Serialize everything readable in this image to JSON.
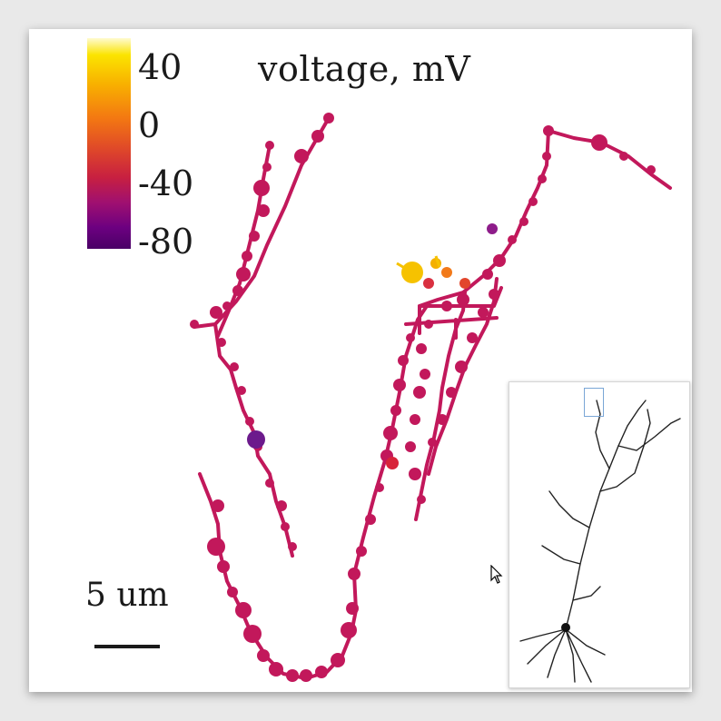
{
  "figure": {
    "title": "voltage, mV",
    "colorbar_ticks": [
      "40",
      "0",
      "-40",
      "-80"
    ],
    "scale_bar_label": "5 um",
    "colormap_stops": [
      "#fffbd0",
      "#fbe400",
      "#f8b000",
      "#f37812",
      "#e04a28",
      "#c82040",
      "#a01070",
      "#6c0080",
      "#4a0066"
    ],
    "dendrite_color": "#c2185b",
    "inset": {
      "highlight_color": "#7aa6d6"
    }
  }
}
